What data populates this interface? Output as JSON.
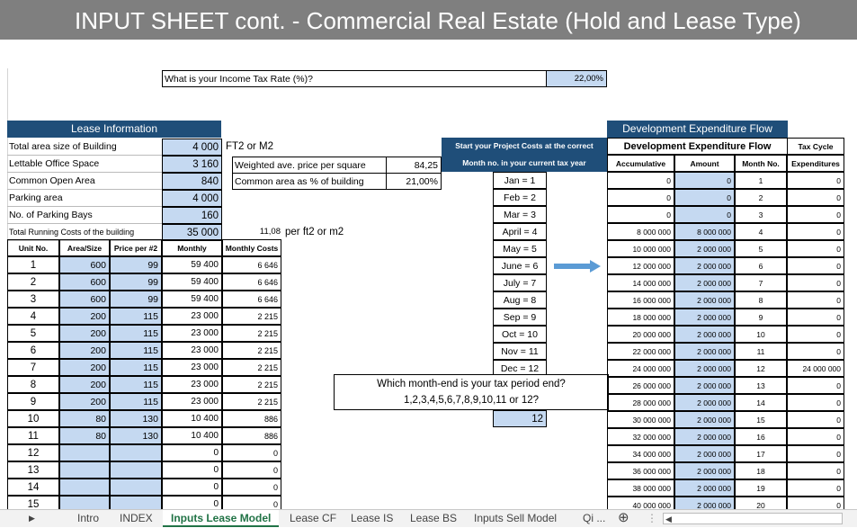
{
  "title": "INPUT SHEET cont. - Commercial Real Estate (Hold and Lease Type)",
  "tax_rate": {
    "label": "What is your Income Tax Rate (%)?",
    "value": "22,00%"
  },
  "lease": {
    "header": "Lease Information",
    "rows": [
      {
        "label": "Total area size of Building",
        "value": "4 000"
      },
      {
        "label": "Lettable Office Space",
        "value": "3 160"
      },
      {
        "label": "Common Open Area",
        "value": "840"
      },
      {
        "label": "Parking area",
        "value": "4 000"
      },
      {
        "label": "No. of Parking Bays",
        "value": "160"
      },
      {
        "label": "Total Running Costs of the building",
        "value": "35 000"
      }
    ],
    "unit_label": "FT2 or M2",
    "weighted_label": "Weighted ave. price per square",
    "weighted_value": "84,25",
    "common_label": "Common area as % of building",
    "common_value": "21,00%",
    "per_value": "11,08",
    "per_label": "per ft2 or m2",
    "cols": [
      "Unit No.",
      "Area/Size",
      "Price per #2",
      "Monthly",
      "Monthly Costs"
    ],
    "units": [
      [
        "1",
        "600",
        "99",
        "59 400",
        "6 646"
      ],
      [
        "2",
        "600",
        "99",
        "59 400",
        "6 646"
      ],
      [
        "3",
        "600",
        "99",
        "59 400",
        "6 646"
      ],
      [
        "4",
        "200",
        "115",
        "23 000",
        "2 215"
      ],
      [
        "5",
        "200",
        "115",
        "23 000",
        "2 215"
      ],
      [
        "6",
        "200",
        "115",
        "23 000",
        "2 215"
      ],
      [
        "7",
        "200",
        "115",
        "23 000",
        "2 215"
      ],
      [
        "8",
        "200",
        "115",
        "23 000",
        "2 215"
      ],
      [
        "9",
        "200",
        "115",
        "23 000",
        "2 215"
      ],
      [
        "10",
        "80",
        "130",
        "10 400",
        "886"
      ],
      [
        "11",
        "80",
        "130",
        "10 400",
        "886"
      ],
      [
        "12",
        "",
        "",
        "0",
        "0"
      ],
      [
        "13",
        "",
        "",
        "0",
        "0"
      ],
      [
        "14",
        "",
        "",
        "0",
        "0"
      ],
      [
        "15",
        "",
        "",
        "0",
        "0"
      ]
    ]
  },
  "project_start": {
    "line1": "Start your Project Costs at the correct",
    "line2": "Month no. in your current tax year",
    "months": [
      "Jan = 1",
      "Feb = 2",
      "Mar = 3",
      "April = 4",
      "May = 5",
      "June = 6",
      "July = 7",
      "Aug = 8",
      "Sep = 9",
      "Oct = 10",
      "Nov = 11",
      "Dec = 12"
    ]
  },
  "tax_period": {
    "q1": "Which month-end is your tax period end?",
    "q2": "1,2,3,4,5,6,7,8,9,10,11 or 12?",
    "answer": "12"
  },
  "dev": {
    "header": "Development Expenditure Flow",
    "sub": "Development Expenditure Flow",
    "tax_head": "Tax Cycle",
    "cols": [
      "Accumulative",
      "Amount",
      "Month No.",
      "Expenditures"
    ],
    "rows": [
      [
        "0",
        "0",
        "1",
        "0"
      ],
      [
        "0",
        "0",
        "2",
        "0"
      ],
      [
        "0",
        "0",
        "3",
        "0"
      ],
      [
        "8 000 000",
        "8 000 000",
        "4",
        "0"
      ],
      [
        "10 000 000",
        "2 000 000",
        "5",
        "0"
      ],
      [
        "12 000 000",
        "2 000 000",
        "6",
        "0"
      ],
      [
        "14 000 000",
        "2 000 000",
        "7",
        "0"
      ],
      [
        "16 000 000",
        "2 000 000",
        "8",
        "0"
      ],
      [
        "18 000 000",
        "2 000 000",
        "9",
        "0"
      ],
      [
        "20 000 000",
        "2 000 000",
        "10",
        "0"
      ],
      [
        "22 000 000",
        "2 000 000",
        "11",
        "0"
      ],
      [
        "24 000 000",
        "2 000 000",
        "12",
        "24 000 000"
      ],
      [
        "26 000 000",
        "2 000 000",
        "13",
        "0"
      ],
      [
        "28 000 000",
        "2 000 000",
        "14",
        "0"
      ],
      [
        "30 000 000",
        "2 000 000",
        "15",
        "0"
      ],
      [
        "32 000 000",
        "2 000 000",
        "16",
        "0"
      ],
      [
        "34 000 000",
        "2 000 000",
        "17",
        "0"
      ],
      [
        "36 000 000",
        "2 000 000",
        "18",
        "0"
      ],
      [
        "38 000 000",
        "2 000 000",
        "19",
        "0"
      ],
      [
        "40 000 000",
        "2 000 000",
        "20",
        "0"
      ]
    ]
  },
  "tabs": [
    {
      "label": "Intro",
      "active": false
    },
    {
      "label": "INDEX",
      "active": false
    },
    {
      "label": "Inputs Lease Model",
      "active": true
    },
    {
      "label": "Lease CF",
      "active": false
    },
    {
      "label": "Lease IS",
      "active": false
    },
    {
      "label": "Lease BS",
      "active": false
    },
    {
      "label": "Inputs Sell Model",
      "active": false
    },
    {
      "label": "Qi ...",
      "active": false
    }
  ],
  "colors": {
    "header_bar": "#7f7f7f",
    "table_header": "#1f4e79",
    "input_cell": "#c5d9f1",
    "active_tab": "#217346",
    "arrow": "#5b9bd5"
  },
  "icons": {
    "nav_next": "triangle-right-icon",
    "add_sheet": "plus-circle-icon",
    "arrow": "right-arrow-icon"
  }
}
